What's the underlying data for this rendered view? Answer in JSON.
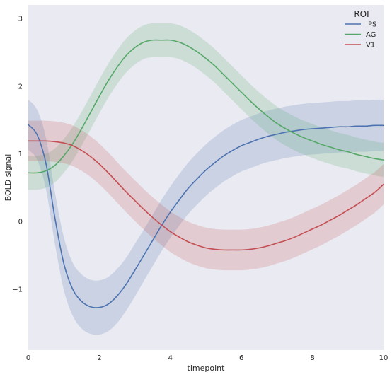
{
  "chart_data": {
    "type": "line",
    "xlabel": "timepoint",
    "ylabel": "BOLD signal",
    "xlim": [
      0,
      10
    ],
    "ylim": [
      -1.9,
      3.2
    ],
    "x_ticks": [
      "0",
      "2",
      "4",
      "6",
      "8",
      "10"
    ],
    "y_ticks": [
      "−1",
      "0",
      "1",
      "2",
      "3"
    ],
    "grid": false,
    "background": "#eaeaf2",
    "legend": {
      "title": "ROI",
      "placement": "top-right"
    },
    "x": [
      0,
      0.25,
      0.5,
      0.75,
      1,
      1.25,
      1.5,
      1.75,
      2,
      2.25,
      2.5,
      2.75,
      3,
      3.25,
      3.5,
      3.75,
      4,
      4.25,
      4.5,
      4.75,
      5,
      5.25,
      5.5,
      5.75,
      6,
      6.25,
      6.5,
      6.75,
      7,
      7.25,
      7.5,
      7.75,
      8,
      8.25,
      8.5,
      8.75,
      9,
      9.25,
      9.5,
      9.75,
      10
    ],
    "series": [
      {
        "name": "IPS",
        "color": "#4c72b0",
        "values": [
          1.43,
          1.28,
          0.85,
          0.05,
          -0.62,
          -1.0,
          -1.18,
          -1.26,
          -1.27,
          -1.22,
          -1.1,
          -0.93,
          -0.72,
          -0.5,
          -0.28,
          -0.06,
          0.14,
          0.32,
          0.49,
          0.63,
          0.76,
          0.87,
          0.97,
          1.05,
          1.12,
          1.17,
          1.22,
          1.26,
          1.29,
          1.32,
          1.34,
          1.36,
          1.37,
          1.38,
          1.39,
          1.4,
          1.4,
          1.41,
          1.41,
          1.42,
          1.42
        ],
        "ci_half_width": [
          0.37,
          0.37,
          0.38,
          0.38,
          0.39,
          0.39,
          0.4,
          0.4,
          0.4,
          0.4,
          0.4,
          0.39,
          0.39,
          0.38,
          0.38,
          0.38,
          0.38,
          0.38,
          0.38,
          0.38,
          0.38,
          0.38,
          0.38,
          0.38,
          0.38,
          0.38,
          0.38,
          0.38,
          0.38,
          0.38,
          0.38,
          0.38,
          0.38,
          0.38,
          0.38,
          0.38,
          0.38,
          0.38,
          0.38,
          0.38,
          0.38
        ]
      },
      {
        "name": "AG",
        "color": "#55a868",
        "values": [
          0.72,
          0.72,
          0.75,
          0.83,
          0.97,
          1.15,
          1.37,
          1.61,
          1.85,
          2.08,
          2.28,
          2.45,
          2.57,
          2.65,
          2.68,
          2.68,
          2.68,
          2.65,
          2.59,
          2.51,
          2.41,
          2.3,
          2.17,
          2.04,
          1.91,
          1.78,
          1.66,
          1.55,
          1.45,
          1.37,
          1.3,
          1.24,
          1.19,
          1.14,
          1.1,
          1.06,
          1.03,
          0.99,
          0.96,
          0.93,
          0.91
        ],
        "ci_half_width": [
          0.25,
          0.25,
          0.25,
          0.25,
          0.25,
          0.25,
          0.25,
          0.25,
          0.25,
          0.25,
          0.25,
          0.25,
          0.25,
          0.25,
          0.25,
          0.25,
          0.25,
          0.25,
          0.25,
          0.25,
          0.25,
          0.25,
          0.25,
          0.25,
          0.25,
          0.25,
          0.25,
          0.25,
          0.25,
          0.25,
          0.25,
          0.25,
          0.25,
          0.25,
          0.25,
          0.25,
          0.25,
          0.25,
          0.25,
          0.25,
          0.25
        ]
      },
      {
        "name": "V1",
        "color": "#c44e52",
        "values": [
          1.19,
          1.19,
          1.19,
          1.18,
          1.16,
          1.12,
          1.05,
          0.96,
          0.85,
          0.72,
          0.58,
          0.44,
          0.31,
          0.18,
          0.06,
          -0.05,
          -0.15,
          -0.23,
          -0.3,
          -0.35,
          -0.39,
          -0.41,
          -0.42,
          -0.42,
          -0.42,
          -0.41,
          -0.39,
          -0.36,
          -0.32,
          -0.28,
          -0.23,
          -0.17,
          -0.11,
          -0.05,
          0.02,
          0.09,
          0.17,
          0.25,
          0.34,
          0.43,
          0.55
        ],
        "ci_half_width": [
          0.3,
          0.3,
          0.3,
          0.3,
          0.3,
          0.3,
          0.3,
          0.3,
          0.3,
          0.3,
          0.3,
          0.3,
          0.3,
          0.3,
          0.3,
          0.3,
          0.3,
          0.3,
          0.3,
          0.3,
          0.3,
          0.3,
          0.3,
          0.3,
          0.3,
          0.3,
          0.3,
          0.3,
          0.3,
          0.3,
          0.3,
          0.3,
          0.3,
          0.3,
          0.3,
          0.3,
          0.3,
          0.3,
          0.3,
          0.3,
          0.3
        ]
      }
    ]
  }
}
